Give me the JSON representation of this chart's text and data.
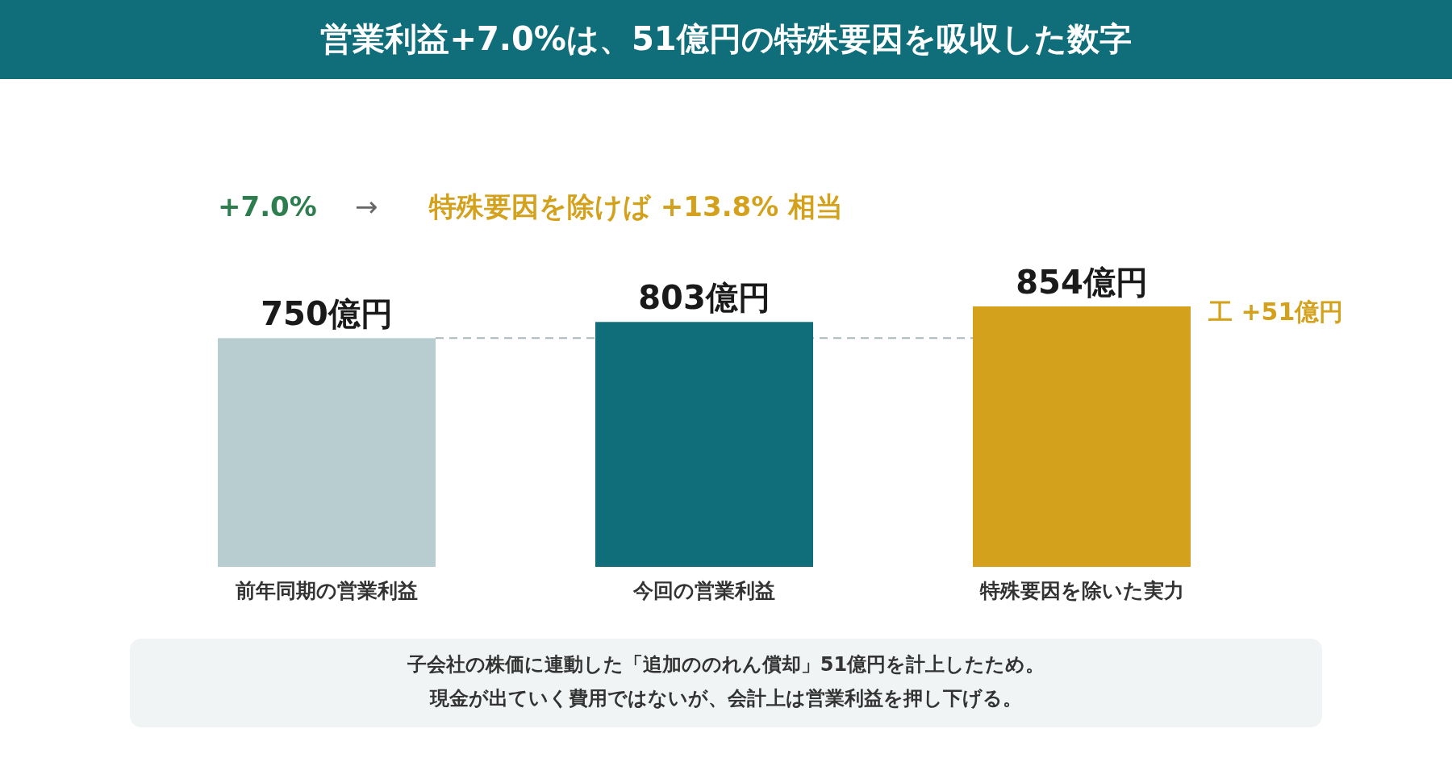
{
  "chart_data": {
    "type": "bar",
    "title": "営業利益+7.0%は、51億円の特殊要因を吸収した数字",
    "categories": [
      "前年同期の営業利益",
      "今回の営業利益",
      "特殊要因を除いた実力"
    ],
    "values": [
      750,
      803,
      854
    ],
    "colors": [
      "#b8cdd0",
      "#0f6e7a",
      "#d4a11c"
    ],
    "value_labels": [
      "750億円",
      "803億円",
      "854億円"
    ],
    "ref_lines": [
      {
        "axis": "y",
        "value": 750,
        "color": "#a9b8bb",
        "line_style": "dashed"
      }
    ],
    "annotations": [
      "+7.0%",
      "→",
      "特殊要因を除けば +13.8% 相当",
      "工  +51億円",
      "子会社の株価に連動した「追加ののれん償却」51億円を計上したため。",
      "現金が出ていく費用ではないが、会計上は営業利益を押し下げる。"
    ]
  }
}
